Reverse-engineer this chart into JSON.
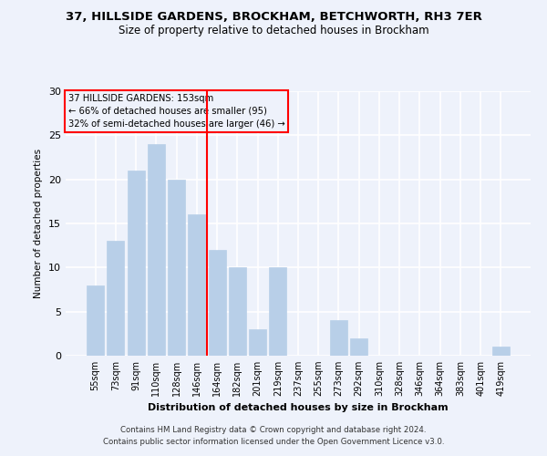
{
  "title1": "37, HILLSIDE GARDENS, BROCKHAM, BETCHWORTH, RH3 7ER",
  "title2": "Size of property relative to detached houses in Brockham",
  "xlabel": "Distribution of detached houses by size in Brockham",
  "ylabel": "Number of detached properties",
  "categories": [
    "55sqm",
    "73sqm",
    "91sqm",
    "110sqm",
    "128sqm",
    "146sqm",
    "164sqm",
    "182sqm",
    "201sqm",
    "219sqm",
    "237sqm",
    "255sqm",
    "273sqm",
    "292sqm",
    "310sqm",
    "328sqm",
    "346sqm",
    "364sqm",
    "383sqm",
    "401sqm",
    "419sqm"
  ],
  "values": [
    8,
    13,
    21,
    24,
    20,
    16,
    12,
    10,
    3,
    10,
    0,
    0,
    4,
    2,
    0,
    0,
    0,
    0,
    0,
    0,
    1
  ],
  "bar_color": "#b8cfe8",
  "bar_edgecolor": "#b8cfe8",
  "vline_x": 5.5,
  "vline_color": "red",
  "annotation_lines": [
    "37 HILLSIDE GARDENS: 153sqm",
    "← 66% of detached houses are smaller (95)",
    "32% of semi-detached houses are larger (46) →"
  ],
  "annotation_box_edgecolor": "red",
  "ylim": [
    0,
    30
  ],
  "yticks": [
    0,
    5,
    10,
    15,
    20,
    25,
    30
  ],
  "footer1": "Contains HM Land Registry data © Crown copyright and database right 2024.",
  "footer2": "Contains public sector information licensed under the Open Government Licence v3.0.",
  "bg_color": "#eef2fb",
  "grid_color": "white"
}
